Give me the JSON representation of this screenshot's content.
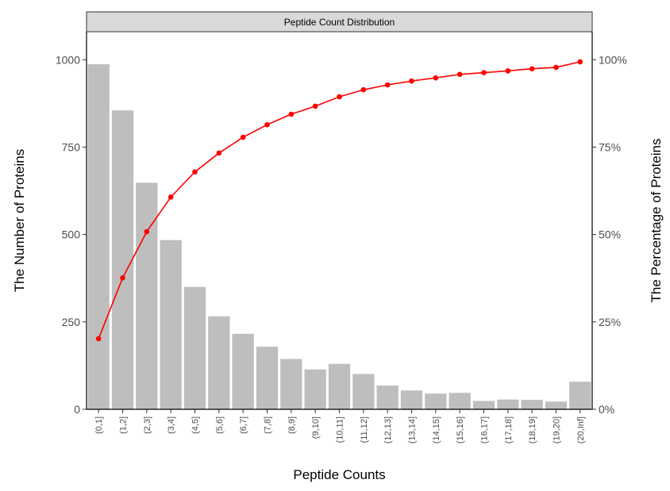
{
  "chart_data": {
    "type": "bar",
    "panel_title": "Peptide Count Distribution",
    "categories": [
      "(0,1]",
      "(1,2]",
      "(2,3]",
      "(3,4]",
      "(4,5]",
      "(5,6]",
      "(6,7]",
      "(7,8]",
      "(8,9]",
      "(9,10]",
      "(10,11]",
      "(11,12]",
      "(12,13]",
      "(13,14]",
      "(14,15]",
      "(15,16]",
      "(16,17]",
      "(17,18]",
      "(18,19]",
      "(19,20]",
      "(20,Inf]"
    ],
    "series": [
      {
        "type": "bar",
        "axis": "left",
        "color": "#bebebe",
        "values": [
          987,
          855,
          648,
          484,
          350,
          266,
          216,
          179,
          144,
          114,
          130,
          101,
          68,
          54,
          45,
          47,
          24,
          28,
          27,
          22,
          79
        ]
      },
      {
        "type": "line",
        "axis": "right",
        "color": "#ff0000",
        "values": [
          0.202,
          0.376,
          0.508,
          0.607,
          0.679,
          0.733,
          0.778,
          0.814,
          0.844,
          0.867,
          0.894,
          0.914,
          0.928,
          0.939,
          0.948,
          0.958,
          0.963,
          0.968,
          0.974,
          0.978,
          0.994
        ]
      }
    ],
    "xlabel": "Peptide Counts",
    "ylabel": "The Number of Proteins",
    "ylabel_right": "The Percentage of Proteins",
    "ylim": [
      0,
      1080
    ],
    "yticks": [
      0,
      250,
      500,
      750,
      1000
    ],
    "yticks_right": [
      0,
      0.25,
      0.5,
      0.75,
      1.0
    ],
    "ytick_right_labels": [
      "0%",
      "25%",
      "50%",
      "75%",
      "100%"
    ],
    "grid": false,
    "legend": "none"
  }
}
